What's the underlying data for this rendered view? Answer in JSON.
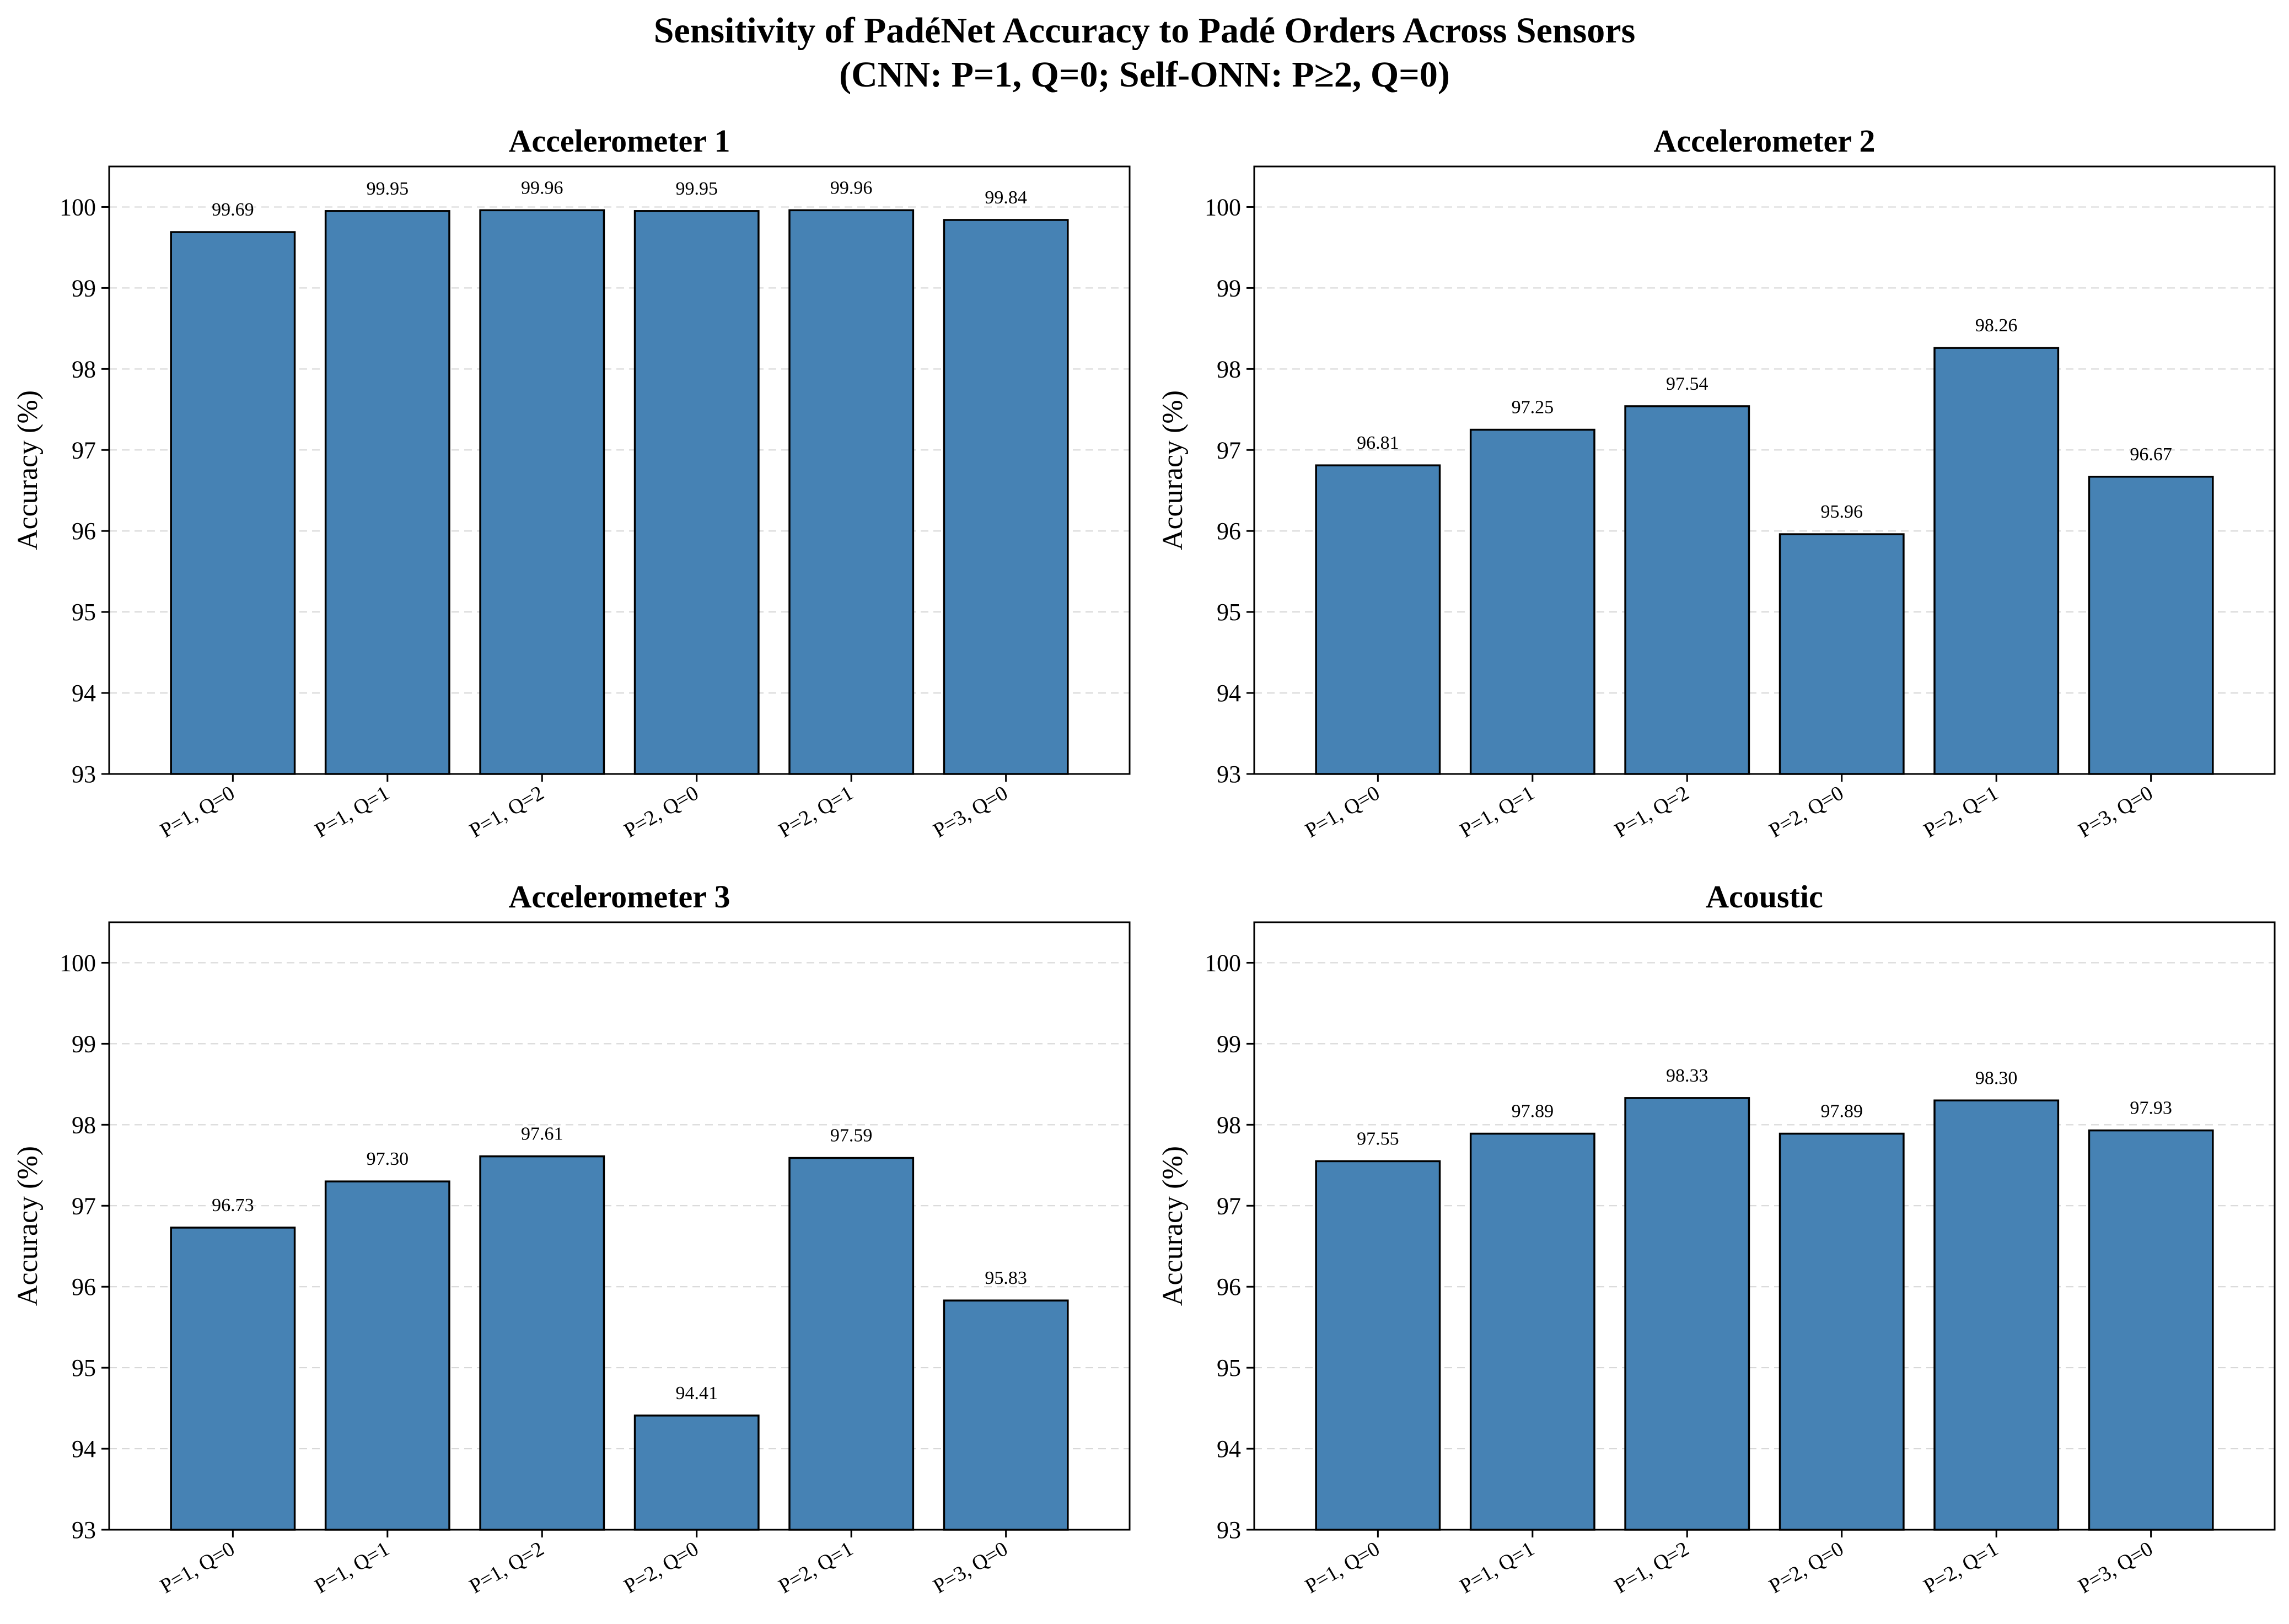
{
  "figure": {
    "title_line1": "Sensitivity of PadéNet Accuracy to Padé Orders Across Sensors",
    "title_line2": "(CNN: P=1, Q=0; Self-ONN: P≥2, Q=0)"
  },
  "colors": {
    "bar": "#4682b4",
    "bar_edge": "#000000",
    "grid": "#d4d4d4"
  },
  "chart_data": [
    {
      "type": "bar",
      "title": "Accelerometer 1",
      "xlabel": "",
      "ylabel": "Accuracy (%)",
      "categories": [
        "P=1, Q=0",
        "P=1, Q=1",
        "P=1, Q=2",
        "P=2, Q=0",
        "P=2, Q=1",
        "P=3, Q=0"
      ],
      "values": [
        99.69,
        99.95,
        99.96,
        99.95,
        99.96,
        99.84
      ],
      "value_labels": [
        "99.69",
        "99.95",
        "99.96",
        "99.95",
        "99.96",
        "99.84"
      ],
      "ylim": [
        93,
        100.5
      ],
      "yticks": [
        93,
        94,
        95,
        96,
        97,
        98,
        99,
        100
      ],
      "grid": "y-dashed"
    },
    {
      "type": "bar",
      "title": "Accelerometer 2",
      "xlabel": "",
      "ylabel": "Accuracy (%)",
      "categories": [
        "P=1, Q=0",
        "P=1, Q=1",
        "P=1, Q=2",
        "P=2, Q=0",
        "P=2, Q=1",
        "P=3, Q=0"
      ],
      "values": [
        96.81,
        97.25,
        97.54,
        95.96,
        98.26,
        96.67
      ],
      "value_labels": [
        "96.81",
        "97.25",
        "97.54",
        "95.96",
        "98.26",
        "96.67"
      ],
      "ylim": [
        93,
        100.5
      ],
      "yticks": [
        93,
        94,
        95,
        96,
        97,
        98,
        99,
        100
      ],
      "grid": "y-dashed"
    },
    {
      "type": "bar",
      "title": "Accelerometer 3",
      "xlabel": "",
      "ylabel": "Accuracy (%)",
      "categories": [
        "P=1, Q=0",
        "P=1, Q=1",
        "P=1, Q=2",
        "P=2, Q=0",
        "P=2, Q=1",
        "P=3, Q=0"
      ],
      "values": [
        96.73,
        97.3,
        97.61,
        94.41,
        97.59,
        95.83
      ],
      "value_labels": [
        "96.73",
        "97.30",
        "97.61",
        "94.41",
        "97.59",
        "95.83"
      ],
      "ylim": [
        93,
        100.5
      ],
      "yticks": [
        93,
        94,
        95,
        96,
        97,
        98,
        99,
        100
      ],
      "grid": "y-dashed"
    },
    {
      "type": "bar",
      "title": "Acoustic",
      "xlabel": "",
      "ylabel": "Accuracy (%)",
      "categories": [
        "P=1, Q=0",
        "P=1, Q=1",
        "P=1, Q=2",
        "P=2, Q=0",
        "P=2, Q=1",
        "P=3, Q=0"
      ],
      "values": [
        97.55,
        97.89,
        98.33,
        97.89,
        98.3,
        97.93
      ],
      "value_labels": [
        "97.55",
        "97.89",
        "98.33",
        "97.89",
        "98.30",
        "97.93"
      ],
      "ylim": [
        93,
        100.5
      ],
      "yticks": [
        93,
        94,
        95,
        96,
        97,
        98,
        99,
        100
      ],
      "grid": "y-dashed"
    }
  ]
}
